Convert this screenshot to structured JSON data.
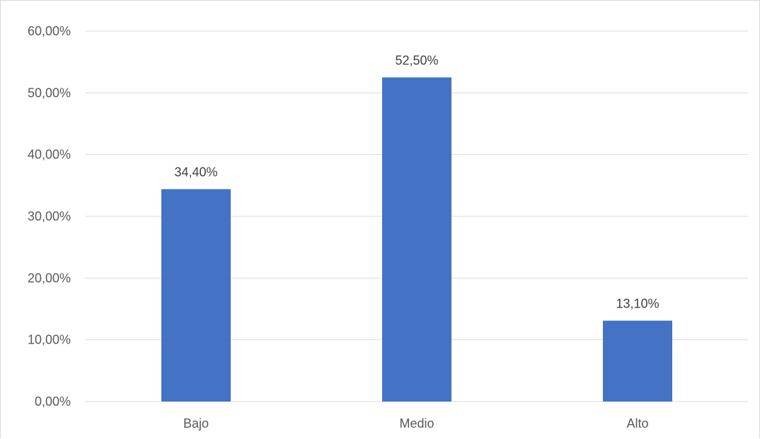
{
  "chart_data": {
    "type": "bar",
    "title": "",
    "xlabel": "",
    "ylabel": "",
    "categories": [
      "Bajo",
      "Medio",
      "Alto"
    ],
    "values": [
      34.4,
      52.5,
      13.1
    ],
    "data_labels": [
      "34,40%",
      "52,50%",
      "13,10%"
    ],
    "ylim": [
      0,
      60
    ],
    "y_ticks": [
      0,
      10,
      20,
      30,
      40,
      50,
      60
    ],
    "y_tick_labels": [
      "0,00%",
      "10,00%",
      "20,00%",
      "30,00%",
      "40,00%",
      "50,00%",
      "60,00%"
    ],
    "grid": true,
    "legend": "none",
    "bar_color": "#4472C4",
    "grid_color": "#d9d9d9"
  }
}
